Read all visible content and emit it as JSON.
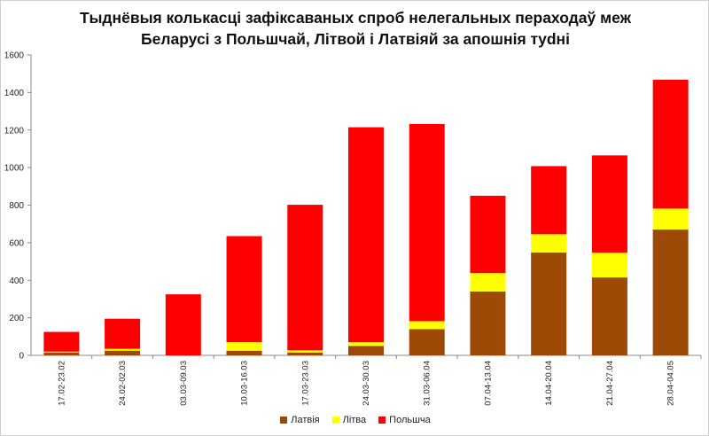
{
  "chart_data": {
    "type": "bar",
    "stacked": true,
    "title_lines": [
      "Тыднёвыя колькасці зафіксаваных спроб нелегальных пераходаў меж",
      "Беларусі з Польшчай, Літвой і Латвіяй за апошнія тydні"
    ],
    "categories": [
      "17.02-23.02",
      "24.02-02.03",
      "03.03-09.03",
      "10.03-16.03",
      "17.03-23.03",
      "24.03-30.03",
      "31.03-06.04",
      "07.04-13.04",
      "14.04-20.04",
      "21.04-27.04",
      "28.04-04.05"
    ],
    "series": [
      {
        "name": "Латвія",
        "color": "#9C4A06",
        "values": [
          15,
          25,
          0,
          25,
          15,
          50,
          140,
          340,
          548,
          415,
          670
        ]
      },
      {
        "name": "Літва",
        "color": "#FFFF00",
        "values": [
          5,
          10,
          0,
          45,
          12,
          20,
          42,
          98,
          97,
          132,
          112
        ]
      },
      {
        "name": "Польшча",
        "color": "#FF0000",
        "values": [
          105,
          160,
          325,
          565,
          775,
          1145,
          1050,
          412,
          363,
          518,
          686
        ]
      }
    ],
    "ylim": [
      0,
      1600
    ],
    "yticks": [
      0,
      200,
      400,
      600,
      800,
      1000,
      1200,
      1400,
      1600
    ],
    "grid": false,
    "legend_position": "bottom",
    "xlabel": "",
    "ylabel": ""
  }
}
